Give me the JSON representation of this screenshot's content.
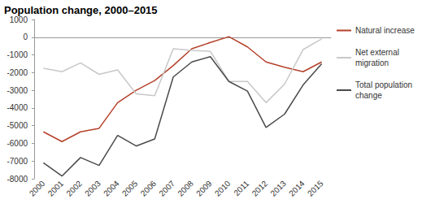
{
  "chart_data": {
    "type": "line",
    "title": "Population change, 2000–2015",
    "categories": [
      "2000",
      "2001",
      "2002",
      "2003",
      "2004",
      "2005",
      "2006",
      "2007",
      "2008",
      "2009",
      "2010",
      "2011",
      "2012",
      "2013",
      "2014",
      "2015"
    ],
    "series": [
      {
        "name": "Natural increase",
        "color": "#b5412b",
        "values": [
          -5350,
          -5900,
          -5350,
          -5150,
          -3700,
          -3000,
          -2450,
          -1600,
          -650,
          -300,
          30,
          -550,
          -1400,
          -1700,
          -1950,
          -1400
        ]
      },
      {
        "name": "Net external migration",
        "color": "#c8c8c8",
        "values": [
          -1750,
          -1950,
          -1450,
          -2100,
          -1850,
          -3200,
          -3300,
          -650,
          -750,
          -800,
          -2500,
          -2500,
          -3700,
          -2650,
          -700,
          -100
        ]
      },
      {
        "name": "Total population change",
        "color": "#4a4a4a",
        "values": [
          -7100,
          -7850,
          -6800,
          -7250,
          -5550,
          -6150,
          -5750,
          -2250,
          -1400,
          -1100,
          -2500,
          -3050,
          -5100,
          -4350,
          -2700,
          -1500
        ]
      }
    ],
    "ylim": [
      -8000,
      1000
    ],
    "yticks": [
      -8000,
      -7000,
      -6000,
      -5000,
      -4000,
      -3000,
      -2000,
      -1000,
      0,
      1000
    ],
    "grid": false,
    "legend": "right"
  }
}
